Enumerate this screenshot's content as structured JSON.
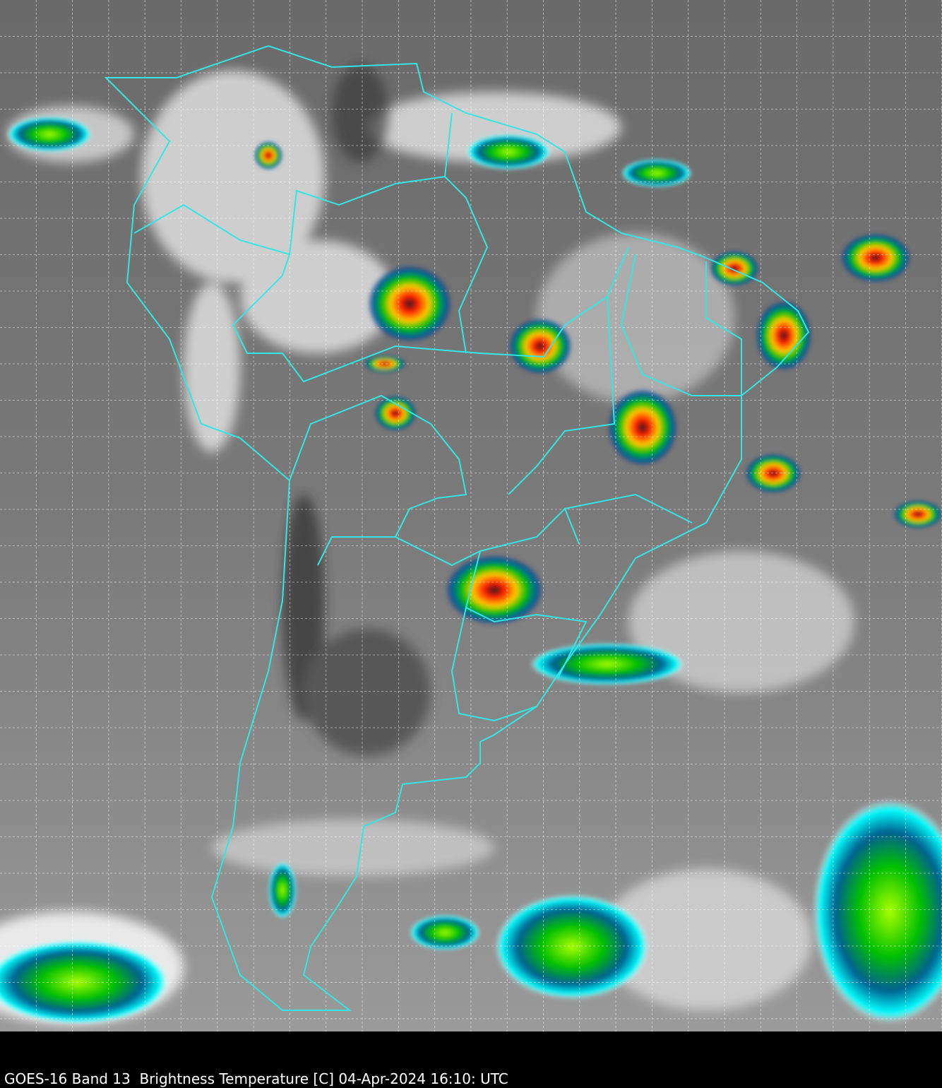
{
  "caption": "GOES-16 Band 13  Brightness Temperature [C] 04-Apr-2024 16:10: UTC",
  "colors": {
    "border": "#33e6e6",
    "grid": "#ffffff",
    "background": "#000000",
    "cold_cloud_scale": [
      "#0a1a6e",
      "#0077aa",
      "#00ffff",
      "#00c000",
      "#ffff00",
      "#ff0000",
      "#202020"
    ]
  }
}
